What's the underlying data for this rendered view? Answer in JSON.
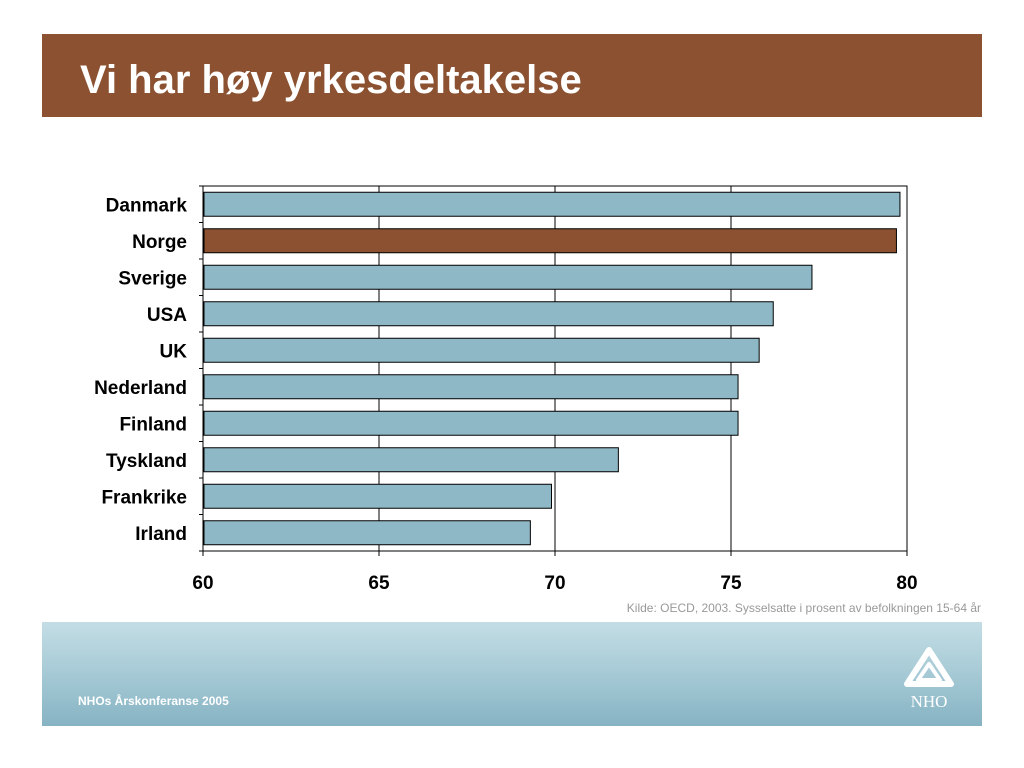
{
  "slide": {
    "title": "Vi har høy yrkesdeltakelse",
    "source": "Kilde: OECD, 2003. Sysselsatte i prosent av befolkningen 15-64 år",
    "footer": "NHOs Årskonferanse 2005",
    "logo_text": "NHO"
  },
  "colors": {
    "banner": "#8b5130",
    "bar_default": "#8fb8c6",
    "bar_highlight": "#8b5130",
    "footer_band": "#a9ccd7"
  },
  "icons": {
    "logo": "nho-logo-icon"
  },
  "chart_data": {
    "type": "bar",
    "orientation": "horizontal",
    "categories": [
      "Danmark",
      "Norge",
      "Sverige",
      "USA",
      "UK",
      "Nederland",
      "Finland",
      "Tyskland",
      "Frankrike",
      "Irland"
    ],
    "values": [
      79.8,
      79.7,
      77.3,
      76.2,
      75.8,
      75.2,
      75.2,
      71.8,
      69.9,
      69.3
    ],
    "highlight": "Norge",
    "xlim": [
      60,
      80
    ],
    "xticks": [
      60,
      65,
      70,
      75,
      80
    ],
    "grid": "vertical",
    "legend": "none",
    "title": "",
    "xlabel": "",
    "ylabel": ""
  }
}
